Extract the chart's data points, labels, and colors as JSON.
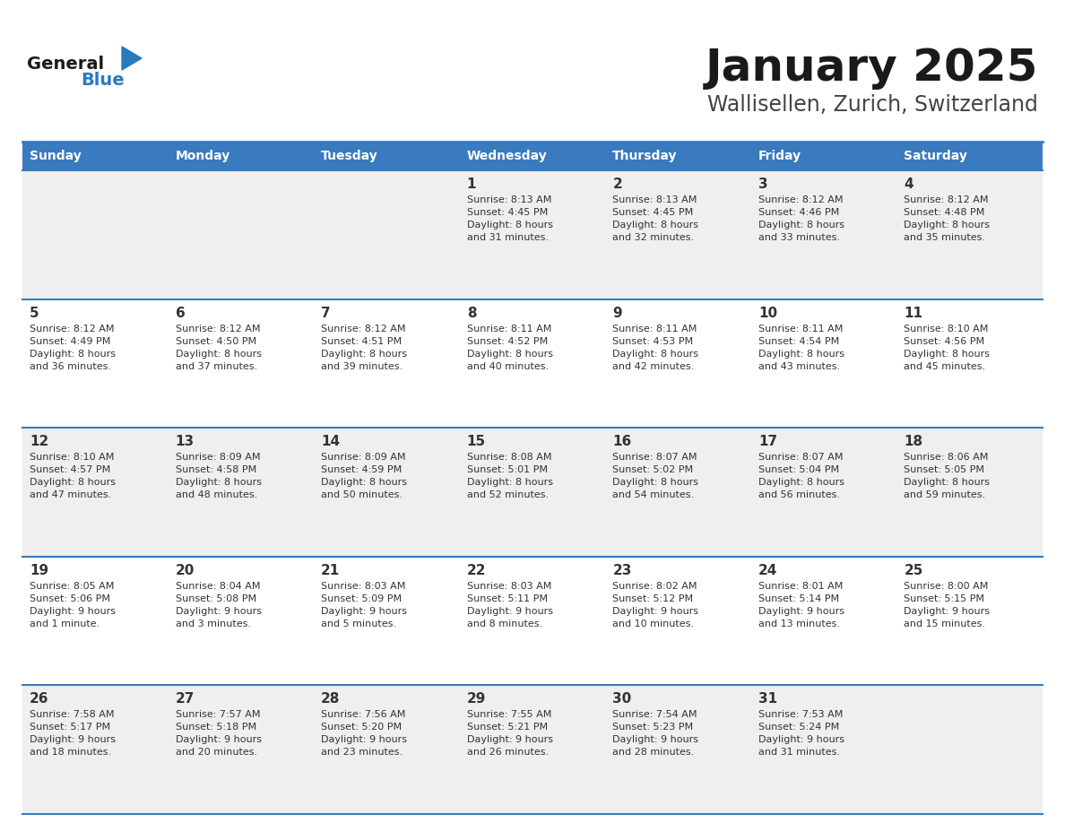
{
  "title": "January 2025",
  "subtitle": "Wallisellen, Zurich, Switzerland",
  "days_of_week": [
    "Sunday",
    "Monday",
    "Tuesday",
    "Wednesday",
    "Thursday",
    "Friday",
    "Saturday"
  ],
  "header_bg": "#3a7abf",
  "header_text": "#ffffff",
  "row_bg_odd": "#efefef",
  "row_bg_even": "#ffffff",
  "separator_color": "#3a7abf",
  "cell_text_color": "#333333",
  "title_color": "#1a1a1a",
  "subtitle_color": "#444444",
  "logo_general_color": "#1a1a1a",
  "logo_blue_color": "#2a7abf",
  "calendar_data": [
    [
      {
        "day": null,
        "text": ""
      },
      {
        "day": null,
        "text": ""
      },
      {
        "day": null,
        "text": ""
      },
      {
        "day": 1,
        "text": "Sunrise: 8:13 AM\nSunset: 4:45 PM\nDaylight: 8 hours\nand 31 minutes."
      },
      {
        "day": 2,
        "text": "Sunrise: 8:13 AM\nSunset: 4:45 PM\nDaylight: 8 hours\nand 32 minutes."
      },
      {
        "day": 3,
        "text": "Sunrise: 8:12 AM\nSunset: 4:46 PM\nDaylight: 8 hours\nand 33 minutes."
      },
      {
        "day": 4,
        "text": "Sunrise: 8:12 AM\nSunset: 4:48 PM\nDaylight: 8 hours\nand 35 minutes."
      }
    ],
    [
      {
        "day": 5,
        "text": "Sunrise: 8:12 AM\nSunset: 4:49 PM\nDaylight: 8 hours\nand 36 minutes."
      },
      {
        "day": 6,
        "text": "Sunrise: 8:12 AM\nSunset: 4:50 PM\nDaylight: 8 hours\nand 37 minutes."
      },
      {
        "day": 7,
        "text": "Sunrise: 8:12 AM\nSunset: 4:51 PM\nDaylight: 8 hours\nand 39 minutes."
      },
      {
        "day": 8,
        "text": "Sunrise: 8:11 AM\nSunset: 4:52 PM\nDaylight: 8 hours\nand 40 minutes."
      },
      {
        "day": 9,
        "text": "Sunrise: 8:11 AM\nSunset: 4:53 PM\nDaylight: 8 hours\nand 42 minutes."
      },
      {
        "day": 10,
        "text": "Sunrise: 8:11 AM\nSunset: 4:54 PM\nDaylight: 8 hours\nand 43 minutes."
      },
      {
        "day": 11,
        "text": "Sunrise: 8:10 AM\nSunset: 4:56 PM\nDaylight: 8 hours\nand 45 minutes."
      }
    ],
    [
      {
        "day": 12,
        "text": "Sunrise: 8:10 AM\nSunset: 4:57 PM\nDaylight: 8 hours\nand 47 minutes."
      },
      {
        "day": 13,
        "text": "Sunrise: 8:09 AM\nSunset: 4:58 PM\nDaylight: 8 hours\nand 48 minutes."
      },
      {
        "day": 14,
        "text": "Sunrise: 8:09 AM\nSunset: 4:59 PM\nDaylight: 8 hours\nand 50 minutes."
      },
      {
        "day": 15,
        "text": "Sunrise: 8:08 AM\nSunset: 5:01 PM\nDaylight: 8 hours\nand 52 minutes."
      },
      {
        "day": 16,
        "text": "Sunrise: 8:07 AM\nSunset: 5:02 PM\nDaylight: 8 hours\nand 54 minutes."
      },
      {
        "day": 17,
        "text": "Sunrise: 8:07 AM\nSunset: 5:04 PM\nDaylight: 8 hours\nand 56 minutes."
      },
      {
        "day": 18,
        "text": "Sunrise: 8:06 AM\nSunset: 5:05 PM\nDaylight: 8 hours\nand 59 minutes."
      }
    ],
    [
      {
        "day": 19,
        "text": "Sunrise: 8:05 AM\nSunset: 5:06 PM\nDaylight: 9 hours\nand 1 minute."
      },
      {
        "day": 20,
        "text": "Sunrise: 8:04 AM\nSunset: 5:08 PM\nDaylight: 9 hours\nand 3 minutes."
      },
      {
        "day": 21,
        "text": "Sunrise: 8:03 AM\nSunset: 5:09 PM\nDaylight: 9 hours\nand 5 minutes."
      },
      {
        "day": 22,
        "text": "Sunrise: 8:03 AM\nSunset: 5:11 PM\nDaylight: 9 hours\nand 8 minutes."
      },
      {
        "day": 23,
        "text": "Sunrise: 8:02 AM\nSunset: 5:12 PM\nDaylight: 9 hours\nand 10 minutes."
      },
      {
        "day": 24,
        "text": "Sunrise: 8:01 AM\nSunset: 5:14 PM\nDaylight: 9 hours\nand 13 minutes."
      },
      {
        "day": 25,
        "text": "Sunrise: 8:00 AM\nSunset: 5:15 PM\nDaylight: 9 hours\nand 15 minutes."
      }
    ],
    [
      {
        "day": 26,
        "text": "Sunrise: 7:58 AM\nSunset: 5:17 PM\nDaylight: 9 hours\nand 18 minutes."
      },
      {
        "day": 27,
        "text": "Sunrise: 7:57 AM\nSunset: 5:18 PM\nDaylight: 9 hours\nand 20 minutes."
      },
      {
        "day": 28,
        "text": "Sunrise: 7:56 AM\nSunset: 5:20 PM\nDaylight: 9 hours\nand 23 minutes."
      },
      {
        "day": 29,
        "text": "Sunrise: 7:55 AM\nSunset: 5:21 PM\nDaylight: 9 hours\nand 26 minutes."
      },
      {
        "day": 30,
        "text": "Sunrise: 7:54 AM\nSunset: 5:23 PM\nDaylight: 9 hours\nand 28 minutes."
      },
      {
        "day": 31,
        "text": "Sunrise: 7:53 AM\nSunset: 5:24 PM\nDaylight: 9 hours\nand 31 minutes."
      },
      {
        "day": null,
        "text": ""
      }
    ]
  ]
}
